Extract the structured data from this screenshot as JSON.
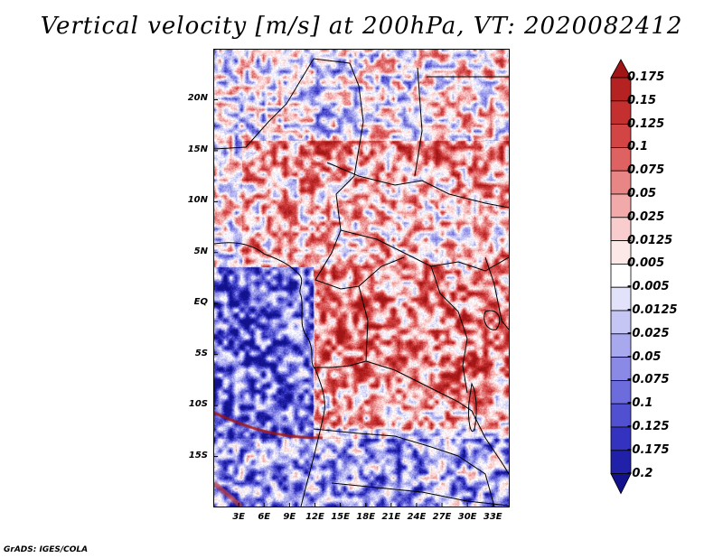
{
  "title": "Vertical velocity [m/s] at 200hPa, VT: 2020082412",
  "footer": "GrADS: IGES/COLA",
  "map": {
    "lat_labels": [
      "20N",
      "15N",
      "10N",
      "5N",
      "EQ",
      "5S",
      "10S",
      "15S"
    ],
    "lat_values": [
      20,
      15,
      10,
      5,
      0,
      -5,
      -10,
      -15
    ],
    "lon_labels": [
      "3E",
      "6E",
      "9E",
      "12E",
      "15E",
      "18E",
      "21E",
      "24E",
      "27E",
      "30E",
      "33E"
    ],
    "lon_values": [
      3,
      6,
      9,
      12,
      15,
      18,
      21,
      24,
      27,
      30,
      33
    ],
    "lon_range": [
      0,
      35
    ],
    "lat_range": [
      -20,
      25
    ]
  },
  "colorbar": {
    "labels": [
      "0.175",
      "0.15",
      "0.125",
      "0.1",
      "0.075",
      "0.05",
      "0.025",
      "0.0125",
      "0.005",
      "-0.005",
      "-0.0125",
      "-0.025",
      "-0.05",
      "-0.075",
      "-0.1",
      "-0.125",
      "-0.175",
      "-0.2"
    ],
    "colors": [
      "#a01515",
      "#b52222",
      "#c43030",
      "#d34545",
      "#de6262",
      "#e88585",
      "#f2a9a9",
      "#f9cdcd",
      "#fde8e8",
      "#ffffff",
      "#e2e2fb",
      "#c6c6f5",
      "#a8a8ef",
      "#8a8ae6",
      "#6c6cdc",
      "#5050d0",
      "#3333bf",
      "#2020a8",
      "#12128c"
    ]
  }
}
